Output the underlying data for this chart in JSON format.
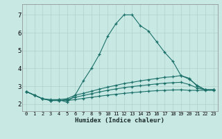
{
  "xlabel": "Humidex (Indice chaleur)",
  "background_color": "#c8e8e4",
  "line_color": "#1a7068",
  "grid_color": "#b0d0cc",
  "xlim_min": -0.5,
  "xlim_max": 23.5,
  "ylim_min": 1.6,
  "ylim_max": 7.6,
  "yticks": [
    2,
    3,
    4,
    5,
    6,
    7
  ],
  "xtick_fontsize": 5.0,
  "ytick_fontsize": 6.5,
  "xlabel_fontsize": 6.5,
  "lines": [
    {
      "x": [
        0,
        1,
        2,
        3,
        4,
        5,
        6,
        7,
        8,
        9,
        10,
        11,
        12,
        13,
        14,
        15,
        16,
        17,
        18,
        19,
        20,
        21,
        22,
        23
      ],
      "y": [
        2.7,
        2.5,
        2.3,
        2.2,
        2.25,
        2.1,
        2.5,
        3.3,
        4.0,
        4.8,
        5.8,
        6.5,
        7.0,
        7.0,
        6.4,
        6.1,
        5.5,
        4.9,
        4.4,
        3.6,
        3.45,
        3.0,
        2.8,
        2.8
      ]
    },
    {
      "x": [
        0,
        1,
        2,
        3,
        4,
        5,
        6,
        7,
        8,
        9,
        10,
        11,
        12,
        13,
        14,
        15,
        16,
        17,
        18,
        19,
        20,
        21,
        22,
        23
      ],
      "y": [
        2.7,
        2.5,
        2.3,
        2.25,
        2.25,
        2.3,
        2.5,
        2.6,
        2.72,
        2.84,
        2.95,
        3.05,
        3.15,
        3.22,
        3.3,
        3.37,
        3.43,
        3.5,
        3.53,
        3.6,
        3.4,
        3.05,
        2.8,
        2.8
      ]
    },
    {
      "x": [
        0,
        1,
        2,
        3,
        4,
        5,
        6,
        7,
        8,
        9,
        10,
        11,
        12,
        13,
        14,
        15,
        16,
        17,
        18,
        19,
        20,
        21,
        22,
        23
      ],
      "y": [
        2.7,
        2.5,
        2.3,
        2.2,
        2.2,
        2.25,
        2.38,
        2.48,
        2.58,
        2.68,
        2.77,
        2.85,
        2.92,
        2.98,
        3.03,
        3.08,
        3.13,
        3.17,
        3.2,
        3.22,
        3.1,
        2.9,
        2.8,
        2.8
      ]
    },
    {
      "x": [
        0,
        1,
        2,
        3,
        4,
        5,
        6,
        7,
        8,
        9,
        10,
        11,
        12,
        13,
        14,
        15,
        16,
        17,
        18,
        19,
        20,
        21,
        22,
        23
      ],
      "y": [
        2.7,
        2.5,
        2.3,
        2.2,
        2.2,
        2.2,
        2.25,
        2.32,
        2.38,
        2.44,
        2.5,
        2.55,
        2.6,
        2.64,
        2.68,
        2.72,
        2.75,
        2.77,
        2.79,
        2.8,
        2.77,
        2.77,
        2.77,
        2.77
      ]
    }
  ]
}
